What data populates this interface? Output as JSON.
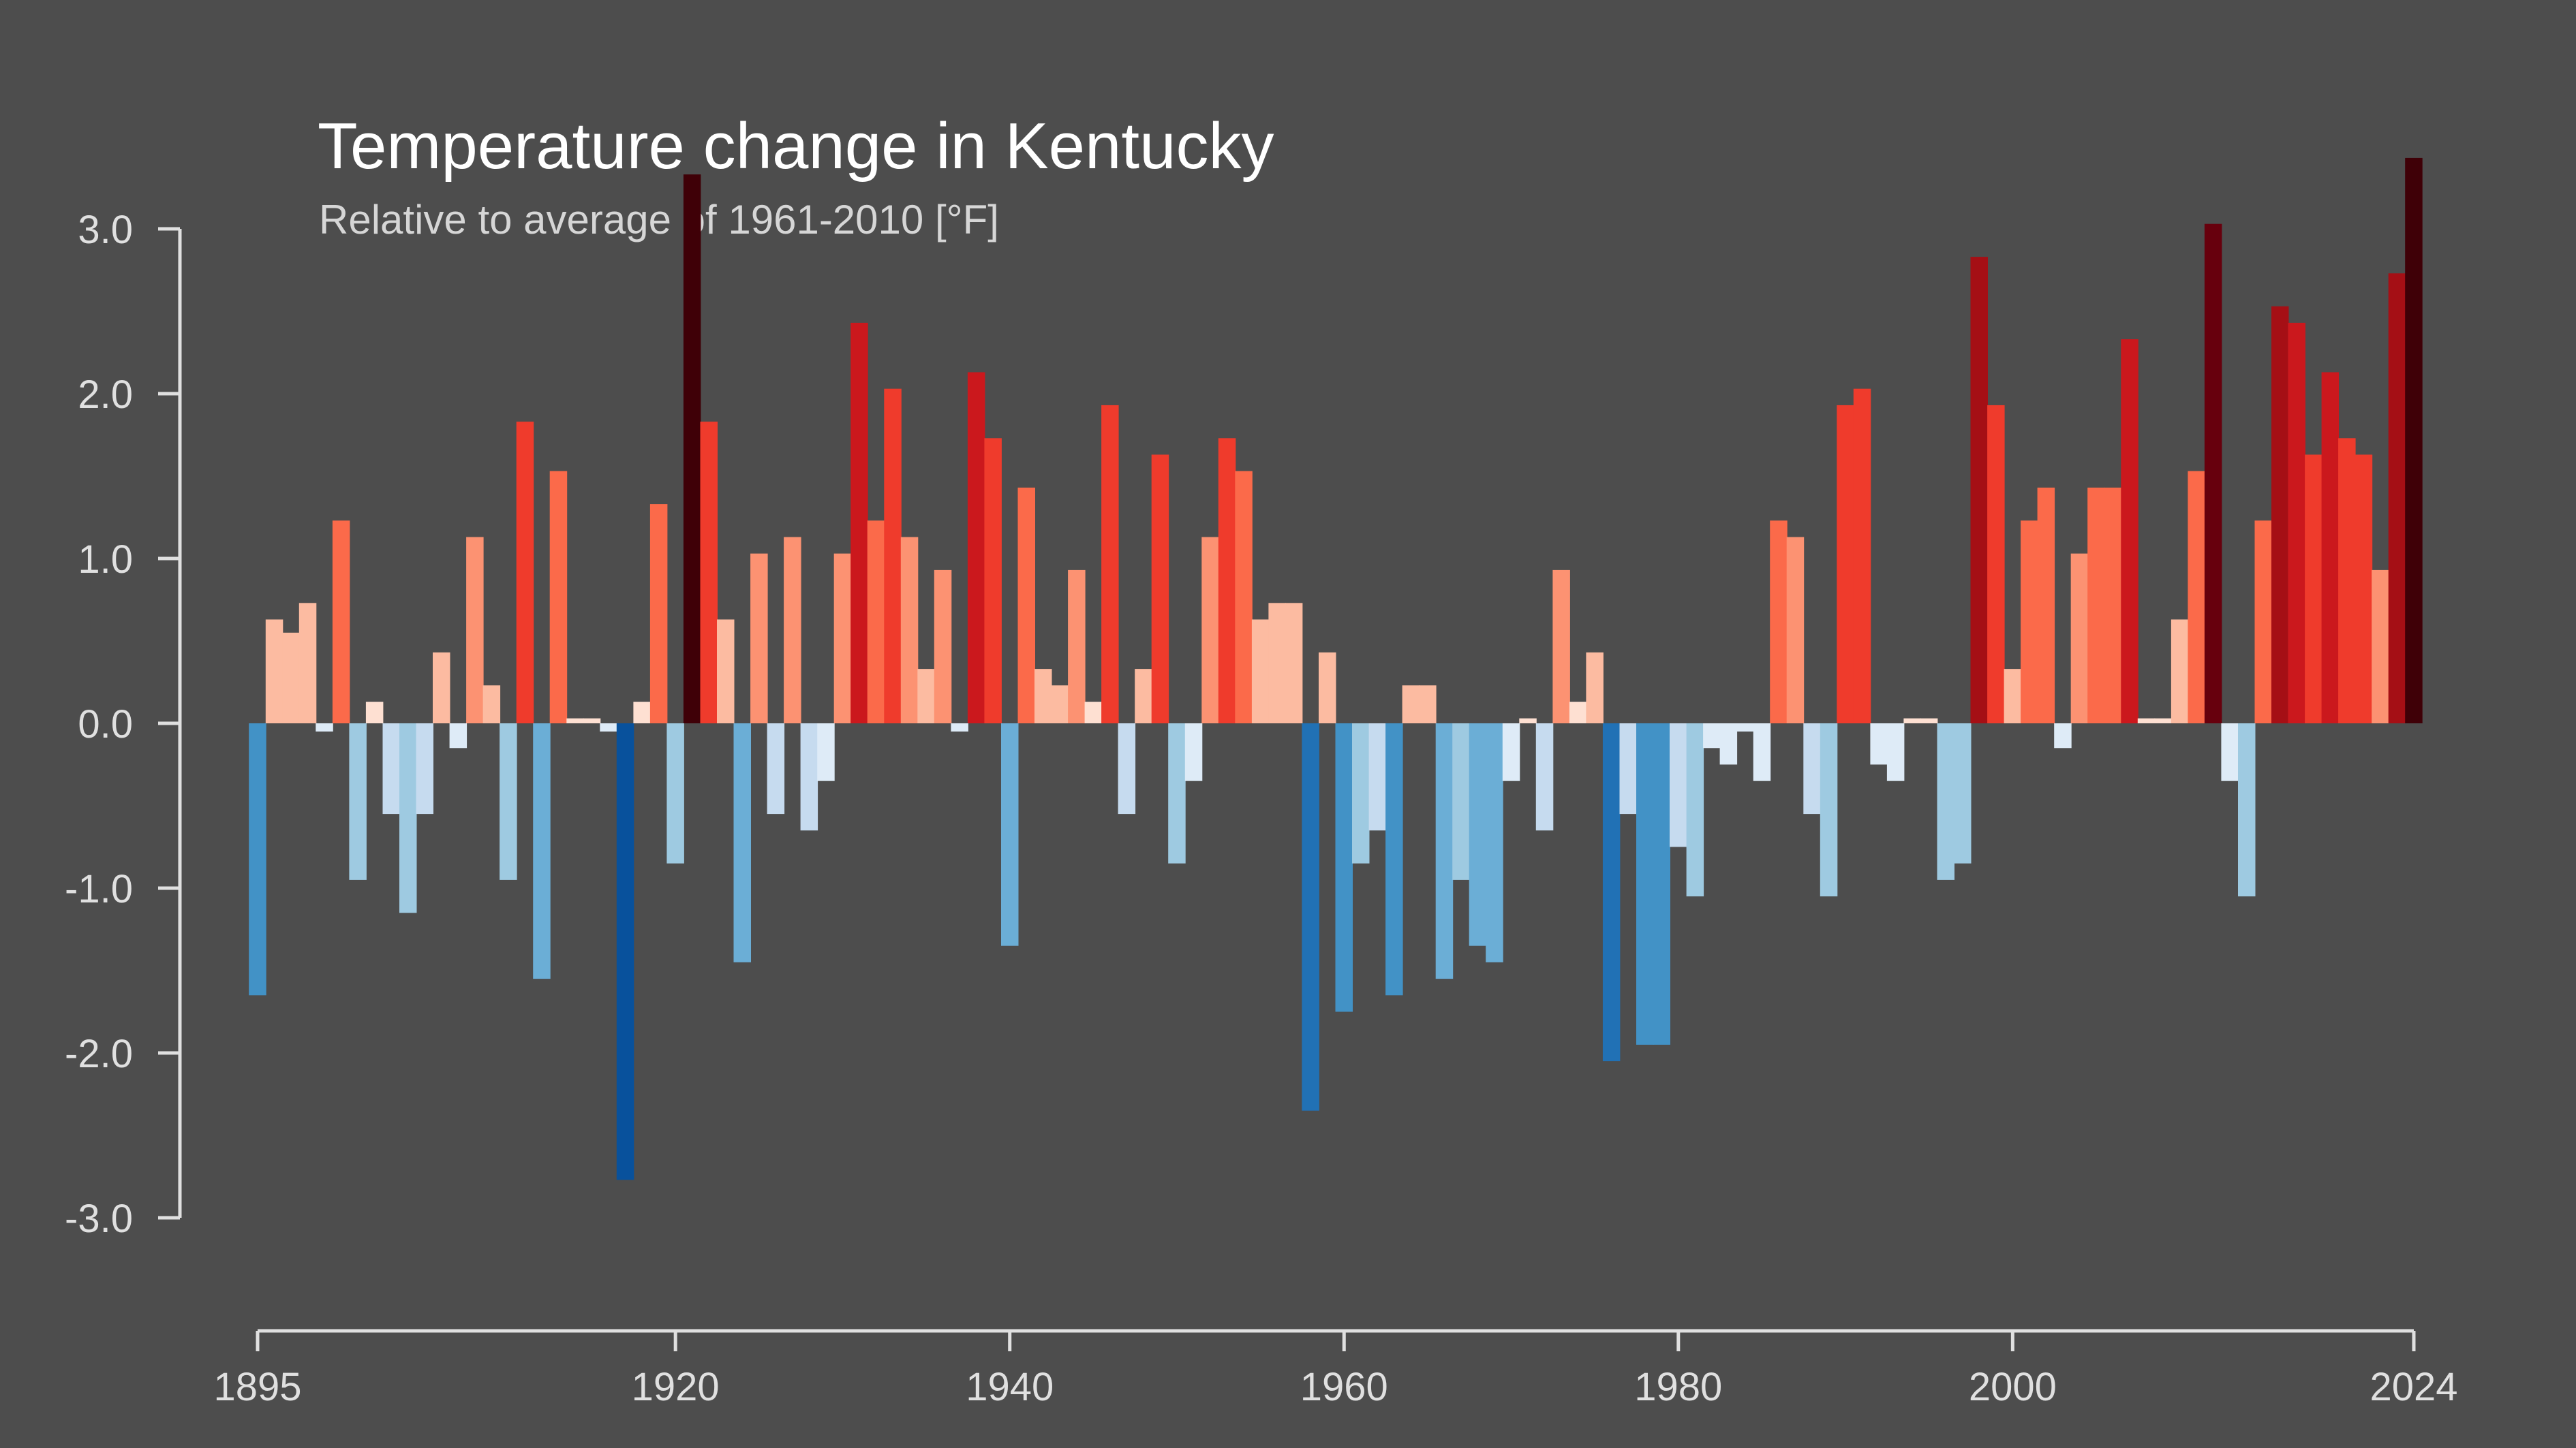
{
  "chart_data": {
    "type": "bar",
    "title": "Temperature change in Kentucky",
    "subtitle": "Relative to average of 1961-2010  [°F]",
    "xlabel": "",
    "ylabel": "",
    "ylim": [
      -3.0,
      3.0
    ],
    "yticks": [
      "3.0",
      "2.0",
      "1.0",
      "0.0",
      "-1.0",
      "-2.0",
      "-3.0"
    ],
    "ytick_values": [
      3.0,
      2.0,
      1.0,
      0.0,
      -1.0,
      -2.0,
      -3.0
    ],
    "xticks": [
      "1895",
      "1920",
      "1940",
      "1960",
      "1980",
      "2000",
      "2024"
    ],
    "xtick_values": [
      1895,
      1920,
      1940,
      1960,
      1980,
      2000,
      2024
    ],
    "grid": false,
    "legend": "none",
    "color_scale": "warm years red, cool years blue; darker for larger anomalies",
    "x": [
      1895,
      1896,
      1897,
      1898,
      1899,
      1900,
      1901,
      1902,
      1903,
      1904,
      1905,
      1906,
      1907,
      1908,
      1909,
      1910,
      1911,
      1912,
      1913,
      1914,
      1915,
      1916,
      1917,
      1918,
      1919,
      1920,
      1921,
      1922,
      1923,
      1924,
      1925,
      1926,
      1927,
      1928,
      1929,
      1930,
      1931,
      1932,
      1933,
      1934,
      1935,
      1936,
      1937,
      1938,
      1939,
      1940,
      1941,
      1942,
      1943,
      1944,
      1945,
      1946,
      1947,
      1948,
      1949,
      1950,
      1951,
      1952,
      1953,
      1954,
      1955,
      1956,
      1957,
      1958,
      1959,
      1960,
      1961,
      1962,
      1963,
      1964,
      1965,
      1966,
      1967,
      1968,
      1969,
      1970,
      1971,
      1972,
      1973,
      1974,
      1975,
      1976,
      1977,
      1978,
      1979,
      1980,
      1981,
      1982,
      1983,
      1984,
      1985,
      1986,
      1987,
      1988,
      1989,
      1990,
      1991,
      1992,
      1993,
      1994,
      1995,
      1996,
      1997,
      1998,
      1999,
      2000,
      2001,
      2002,
      2003,
      2004,
      2005,
      2006,
      2007,
      2008,
      2009,
      2010,
      2011,
      2012,
      2013,
      2014,
      2015,
      2016,
      2017,
      2018,
      2019,
      2020,
      2021,
      2022,
      2023,
      2024
    ],
    "values": [
      -1.65,
      0.63,
      0.55,
      0.73,
      -0.05,
      1.23,
      -0.95,
      0.13,
      -0.55,
      -1.15,
      -0.55,
      0.43,
      -0.15,
      1.13,
      0.23,
      -0.95,
      1.83,
      -1.55,
      1.53,
      0.03,
      0.03,
      -0.05,
      -2.77,
      0.13,
      1.33,
      -0.85,
      3.33,
      1.83,
      0.63,
      -1.45,
      1.03,
      -0.55,
      1.13,
      -0.65,
      -0.35,
      1.03,
      2.43,
      1.23,
      2.03,
      1.13,
      0.33,
      0.93,
      -0.05,
      2.13,
      1.73,
      -1.35,
      1.43,
      0.33,
      0.23,
      0.93,
      0.13,
      1.93,
      -0.55,
      0.33,
      1.63,
      -0.85,
      -0.35,
      1.13,
      1.73,
      1.53,
      0.63,
      0.73,
      0.73,
      -2.35,
      0.43,
      -1.75,
      -0.85,
      -0.65,
      -1.65,
      0.23,
      0.23,
      -1.55,
      -0.95,
      -1.35,
      -1.45,
      -0.35,
      0.03,
      -0.65,
      0.93,
      0.13,
      0.43,
      -2.05,
      -0.55,
      -1.95,
      -1.95,
      -0.75,
      -1.05,
      -0.15,
      -0.25,
      -0.05,
      -0.35,
      1.23,
      1.13,
      -0.55,
      -1.05,
      1.93,
      2.03,
      -0.25,
      -0.35,
      0.03,
      0.03,
      -0.95,
      -0.85,
      2.83,
      1.93,
      0.33,
      1.23,
      1.43,
      -0.15,
      1.03,
      1.43,
      1.43,
      2.33,
      0.03,
      0.03,
      0.63,
      1.53,
      3.03,
      -0.35,
      -1.05,
      1.23,
      2.53,
      2.43,
      1.63,
      2.13,
      1.73,
      1.63,
      0.93,
      2.73,
      3.43
    ]
  }
}
